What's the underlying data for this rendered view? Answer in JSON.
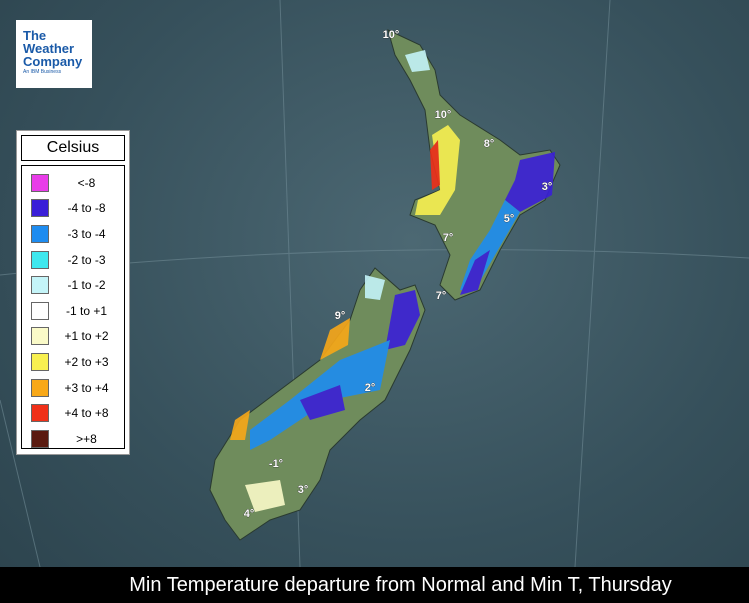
{
  "logo": {
    "line1": "The",
    "line2": "Weather",
    "line3": "Company",
    "tagline": "An IBM Business"
  },
  "legend": {
    "title": "Celsius",
    "items": [
      {
        "label": "<-8",
        "color": "#e83ce8"
      },
      {
        "label": "-4 to -8",
        "color": "#3a1fd8"
      },
      {
        "label": "-3 to -4",
        "color": "#1e8cf0"
      },
      {
        "label": "-2 to -3",
        "color": "#3ee8ee"
      },
      {
        "label": "-1 to -2",
        "color": "#c4f4f8"
      },
      {
        "label": "-1 to +1",
        "color": "#ffffff"
      },
      {
        "label": "+1 to +2",
        "color": "#fafac8"
      },
      {
        "label": "+2 to +3",
        "color": "#f8f050"
      },
      {
        "label": "+3 to +4",
        "color": "#f8a818"
      },
      {
        "label": "+4 to +8",
        "color": "#f03018"
      },
      {
        "label": ">+8",
        "color": "#5a1a10"
      }
    ]
  },
  "map_labels": [
    "10°",
    "10°",
    "8°",
    "3°",
    "5°",
    "7°",
    "7°",
    "9°",
    "2°",
    "-1°",
    "3°",
    "4°"
  ],
  "caption": "Min Temperature departure from Normal and Min T, Thursday"
}
